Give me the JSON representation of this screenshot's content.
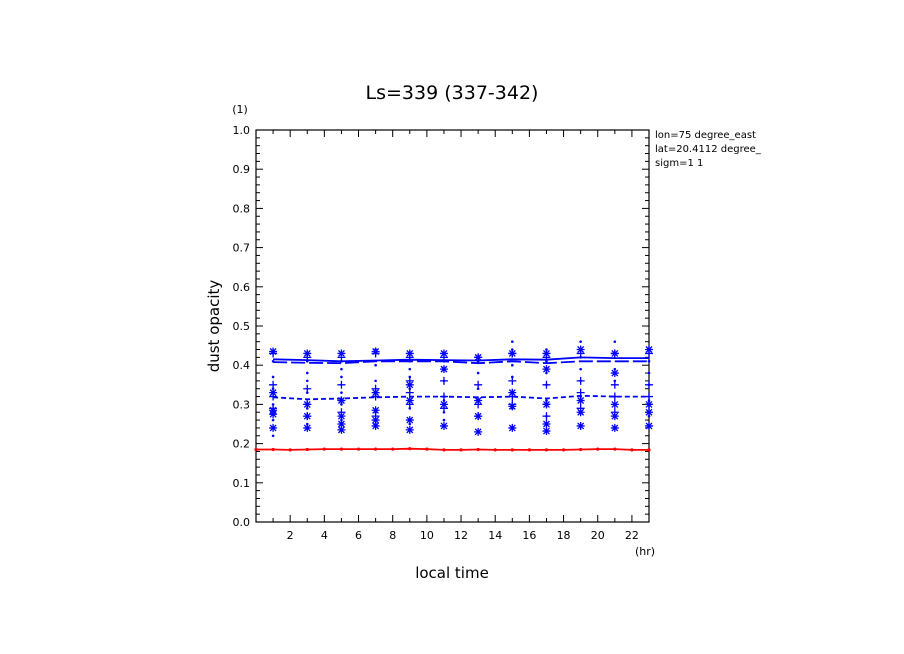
{
  "chart_data": {
    "type": "line",
    "title": "Ls=339 (337-342)",
    "ylabel": "dust opacity",
    "yunit": "(1)",
    "xlabel": "local time",
    "xunit": "(hr)",
    "xlim": [
      0,
      23
    ],
    "ylim": [
      0,
      1.0
    ],
    "xticks": [
      2,
      4,
      6,
      8,
      10,
      12,
      14,
      16,
      18,
      20,
      22
    ],
    "yticks": [
      0.0,
      0.1,
      0.2,
      0.3,
      0.4,
      0.5,
      0.6,
      0.7,
      0.8,
      0.9,
      1.0
    ],
    "annotations": [
      "lon=75 degree_east",
      "lat=20.4112 degree_",
      "sigm=1 1"
    ],
    "series": [
      {
        "style": "solid",
        "color": "#0000ff",
        "x": [
          1,
          3,
          5,
          7,
          9,
          11,
          13,
          15,
          17,
          19,
          21,
          23
        ],
        "values": [
          0.415,
          0.413,
          0.41,
          0.412,
          0.414,
          0.413,
          0.412,
          0.415,
          0.414,
          0.42,
          0.418,
          0.418
        ]
      },
      {
        "style": "longdash",
        "color": "#0000ff",
        "x": [
          1,
          3,
          5,
          7,
          9,
          11,
          13,
          15,
          17,
          19,
          21,
          23
        ],
        "values": [
          0.408,
          0.406,
          0.405,
          0.41,
          0.41,
          0.41,
          0.405,
          0.41,
          0.405,
          0.41,
          0.41,
          0.41
        ]
      },
      {
        "style": "dash",
        "color": "#0000ff",
        "x": [
          1,
          3,
          5,
          7,
          9,
          11,
          13,
          15,
          17,
          19,
          21,
          23
        ],
        "values": [
          0.318,
          0.313,
          0.315,
          0.318,
          0.32,
          0.32,
          0.318,
          0.32,
          0.315,
          0.322,
          0.32,
          0.32
        ]
      },
      {
        "style": "solid",
        "color": "#ff0000",
        "x": [
          0,
          1,
          2,
          3,
          4,
          5,
          6,
          7,
          8,
          9,
          10,
          11,
          12,
          13,
          14,
          15,
          16,
          17,
          18,
          19,
          20,
          21,
          22,
          23
        ],
        "values": [
          0.185,
          0.185,
          0.184,
          0.185,
          0.186,
          0.186,
          0.186,
          0.186,
          0.186,
          0.187,
          0.186,
          0.184,
          0.184,
          0.185,
          0.184,
          0.184,
          0.184,
          0.184,
          0.184,
          0.185,
          0.186,
          0.186,
          0.184,
          0.184
        ]
      }
    ],
    "scatter_members": {
      "color": "#0000ff",
      "x": [
        1,
        3,
        5,
        7,
        9,
        11,
        13,
        15,
        17,
        19,
        21,
        23
      ],
      "plus": [
        [
          0.43,
          0.35,
          0.32,
          0.29
        ],
        [
          0.42,
          0.34,
          0.3,
          0.27
        ],
        [
          0.42,
          0.35,
          0.31,
          0.28
        ],
        [
          0.43,
          0.34,
          0.32,
          0.27
        ],
        [
          0.42,
          0.36,
          0.33,
          0.3
        ],
        [
          0.42,
          0.36,
          0.32,
          0.29
        ],
        [
          0.42,
          0.35,
          0.3,
          0.27
        ],
        [
          0.43,
          0.36,
          0.32,
          0.3
        ],
        [
          0.42,
          0.35,
          0.3,
          0.27
        ],
        [
          0.43,
          0.36,
          0.33,
          0.29
        ],
        [
          0.43,
          0.35,
          0.32,
          0.28
        ],
        [
          0.43,
          0.35,
          0.32,
          0.3
        ]
      ],
      "star": [
        [
          0.435,
          0.33,
          0.285,
          0.275,
          0.24
        ],
        [
          0.43,
          0.3,
          0.27,
          0.24
        ],
        [
          0.43,
          0.31,
          0.27,
          0.25,
          0.235
        ],
        [
          0.435,
          0.33,
          0.285,
          0.26,
          0.245
        ],
        [
          0.43,
          0.35,
          0.31,
          0.26,
          0.235
        ],
        [
          0.43,
          0.39,
          0.3,
          0.245
        ],
        [
          0.42,
          0.31,
          0.27,
          0.23
        ],
        [
          0.43,
          0.33,
          0.295,
          0.24
        ],
        [
          0.43,
          0.39,
          0.3,
          0.25,
          0.232
        ],
        [
          0.44,
          0.31,
          0.28,
          0.245
        ],
        [
          0.43,
          0.38,
          0.3,
          0.27,
          0.24
        ],
        [
          0.44,
          0.3,
          0.28,
          0.245
        ]
      ],
      "dot": [
        [
          0.41,
          0.37,
          0.34,
          0.3,
          0.26,
          0.22
        ],
        [
          0.41,
          0.38,
          0.36,
          0.33,
          0.29,
          0.25
        ],
        [
          0.41,
          0.39,
          0.37,
          0.33,
          0.3,
          0.26
        ],
        [
          0.44,
          0.4,
          0.36,
          0.32,
          0.28,
          0.25
        ],
        [
          0.41,
          0.39,
          0.37,
          0.34,
          0.29,
          0.25
        ],
        [
          0.41,
          0.39,
          0.36,
          0.31,
          0.28,
          0.26
        ],
        [
          0.41,
          0.38,
          0.34,
          0.31,
          0.27
        ],
        [
          0.46,
          0.44,
          0.4,
          0.37,
          0.33,
          0.29
        ],
        [
          0.44,
          0.41,
          0.38,
          0.35,
          0.31,
          0.27
        ],
        [
          0.46,
          0.42,
          0.39,
          0.36,
          0.32,
          0.28
        ],
        [
          0.46,
          0.43,
          0.39,
          0.36,
          0.32
        ],
        [
          0.41,
          0.38,
          0.35,
          0.31,
          0.27
        ]
      ]
    }
  }
}
